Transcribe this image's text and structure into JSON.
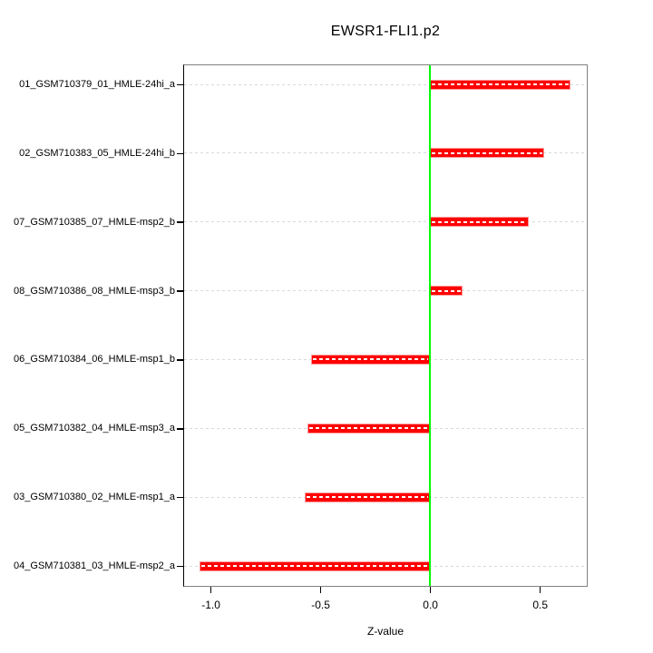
{
  "chart_data": {
    "type": "bar",
    "orientation": "horizontal",
    "title": "EWSR1-FLI1.p2",
    "xlabel": "Z-value",
    "ylabel": "",
    "legend": "none",
    "grid": "dashed horizontal line at each category row",
    "categories": [
      "01_GSM710379_01_HMLE-24hi_a",
      "02_GSM710383_05_HMLE-24hi_b",
      "07_GSM710385_07_HMLE-msp2_b",
      "08_GSM710386_08_HMLE-msp3_b",
      "06_GSM710384_06_HMLE-msp1_b",
      "05_GSM710382_04_HMLE-msp3_a",
      "03_GSM710380_02_HMLE-msp1_a",
      "04_GSM710381_03_HMLE-msp2_a"
    ],
    "values": [
      0.64,
      0.52,
      0.45,
      0.15,
      -0.54,
      -0.56,
      -0.57,
      -1.05
    ],
    "xlim": [
      -1.12,
      0.71
    ],
    "x_ticks": [
      -1.0,
      -0.5,
      0.0,
      0.5
    ],
    "x_tick_labels": [
      "-1.0",
      "-0.5",
      "0.0",
      "0.5"
    ],
    "zero_line_at": 0.0,
    "colors": {
      "bar_fill": "#ff0000",
      "bar_border": "#ff9999",
      "bar_center_dash": "#ffffff",
      "zero_line": "#00ff00",
      "gridline": "#d9d9d9",
      "plot_border": "#808080",
      "axis": "#000000",
      "text": "#000000"
    }
  }
}
